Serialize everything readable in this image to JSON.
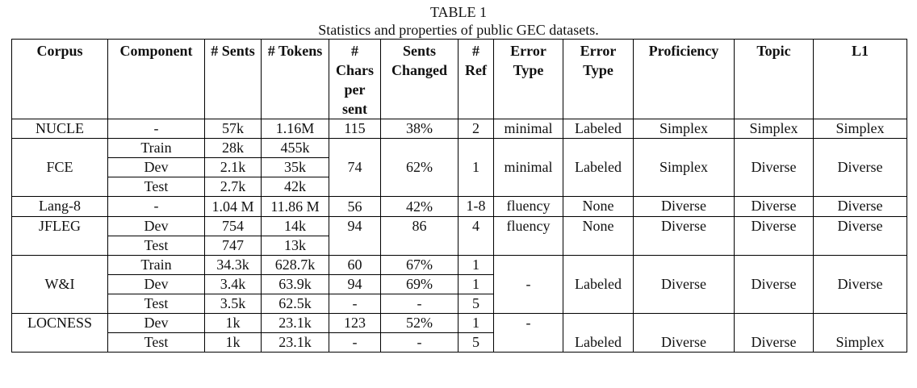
{
  "caption": {
    "number": "TABLE 1",
    "title": "Statistics and properties of public GEC datasets."
  },
  "headers": [
    "Corpus",
    "Component",
    "# Sents",
    "# Tokens",
    "# Chars per sent",
    "Sents Changed",
    "# Ref",
    "Error Type",
    "Error Type",
    "Proficiency",
    "Topic",
    "L1"
  ],
  "rows": {
    "nucle": {
      "corpus": "NUCLE",
      "component": "-",
      "sents": "57k",
      "tokens": "1.16M",
      "chars": "115",
      "changed": "38%",
      "ref": "2",
      "error_type_1": "minimal",
      "error_type_2": "Labeled",
      "proficiency": "Simplex",
      "topic": "Simplex",
      "l1": "Simplex"
    },
    "fce": {
      "corpus": "FCE",
      "chars": "74",
      "changed": "62%",
      "ref": "1",
      "error_type_1": "minimal",
      "error_type_2": "Labeled",
      "proficiency": "Simplex",
      "topic": "Diverse",
      "l1": "Diverse",
      "components": [
        {
          "component": "Train",
          "sents": "28k",
          "tokens": "455k"
        },
        {
          "component": "Dev",
          "sents": "2.1k",
          "tokens": "35k"
        },
        {
          "component": "Test",
          "sents": "2.7k",
          "tokens": "42k"
        }
      ]
    },
    "lang8": {
      "corpus": "Lang-8",
      "component": "-",
      "sents": "1.04 M",
      "tokens": "11.86 M",
      "chars": "56",
      "changed": "42%",
      "ref": "1-8",
      "error_type_1": "fluency",
      "error_type_2": "None",
      "proficiency": "Diverse",
      "topic": "Diverse",
      "l1": "Diverse"
    },
    "jfleg": {
      "corpus": "JFLEG",
      "chars": "94",
      "changed": "86",
      "ref": "4",
      "error_type_1": "fluency",
      "error_type_2": "None",
      "proficiency": "Diverse",
      "topic": "Diverse",
      "l1": "Diverse",
      "components": [
        {
          "component": "Dev",
          "sents": "754",
          "tokens": "14k"
        },
        {
          "component": "Test",
          "sents": "747",
          "tokens": "13k"
        }
      ]
    },
    "wi": {
      "corpus": "W&I",
      "error_type_1": "-",
      "error_type_2": "Labeled",
      "proficiency": "Diverse",
      "topic": "Diverse",
      "l1": "Diverse",
      "components": [
        {
          "component": "Train",
          "sents": "34.3k",
          "tokens": "628.7k",
          "chars": "60",
          "changed": "67%",
          "ref": "1"
        },
        {
          "component": "Dev",
          "sents": "3.4k",
          "tokens": "63.9k",
          "chars": "94",
          "changed": "69%",
          "ref": "1"
        },
        {
          "component": "Test",
          "sents": "3.5k",
          "tokens": "62.5k",
          "chars": "-",
          "changed": "-",
          "ref": "5"
        }
      ]
    },
    "locness": {
      "corpus": "LOCNESS",
      "error_type_1": "-",
      "error_type_2": "Labeled",
      "proficiency": "Diverse",
      "topic": "Diverse",
      "l1": "Simplex",
      "components": [
        {
          "component": "Dev",
          "sents": "1k",
          "tokens": "23.1k",
          "chars": "123",
          "changed": "52%",
          "ref": "1"
        },
        {
          "component": "Test",
          "sents": "1k",
          "tokens": "23.1k",
          "chars": "-",
          "changed": "-",
          "ref": "5"
        }
      ]
    }
  }
}
